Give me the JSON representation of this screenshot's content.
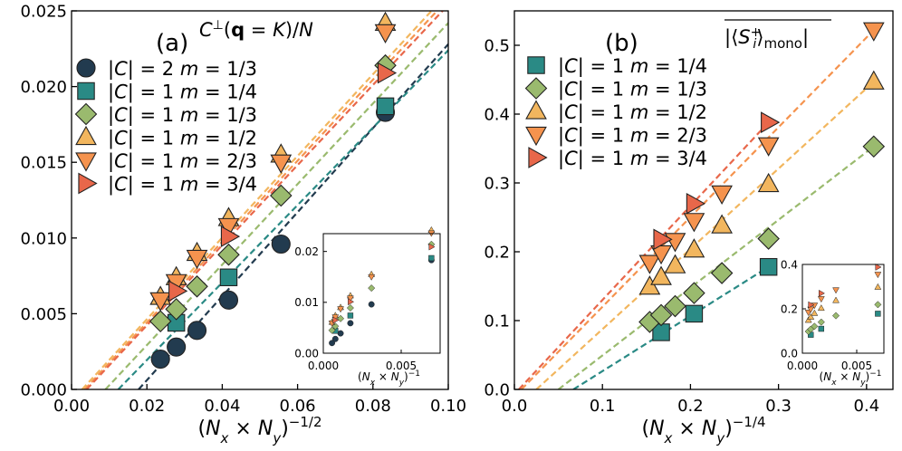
{
  "chart_data": [
    {
      "type": "scatter",
      "panel_label": "(a)",
      "title": "C⊥(q = K)/N",
      "xlabel": "(Nx × Ny)^(−1/2)",
      "xlim": [
        0.0,
        0.1
      ],
      "ylim": [
        0.0,
        0.025
      ],
      "xticks": [
        "0.00",
        "0.02",
        "0.04",
        "0.06",
        "0.08",
        "0.10"
      ],
      "yticks": [
        "0.000",
        "0.005",
        "0.010",
        "0.015",
        "0.020",
        "0.025"
      ],
      "legend_position": "upper-left",
      "fit_lines": "dashed",
      "series": [
        {
          "name": "|C| = 2 m = 1/3",
          "marker": "circle",
          "color": "#223b4f",
          "x": [
            0.0236,
            0.0278,
            0.0333,
            0.0417,
            0.0556,
            0.0833
          ],
          "y": [
            0.002,
            0.0028,
            0.0039,
            0.0059,
            0.0096,
            0.0183
          ],
          "fit": [
            [
              0.0178,
              0.0
            ],
            [
              0.1,
              0.0228
            ]
          ]
        },
        {
          "name": "|C| = 1 m = 1/4",
          "marker": "square",
          "color": "#2a8a85",
          "x": [
            0.0278,
            0.0417,
            0.0833
          ],
          "y": [
            0.0044,
            0.0074,
            0.0187
          ],
          "fit": [
            [
              0.0124,
              0.0
            ],
            [
              0.1,
              0.0224
            ]
          ]
        },
        {
          "name": "|C| = 1 m = 1/3",
          "marker": "diamond",
          "color": "#9aba6e",
          "x": [
            0.0236,
            0.0278,
            0.0333,
            0.0417,
            0.0556,
            0.0833
          ],
          "y": [
            0.0045,
            0.0053,
            0.0068,
            0.0089,
            0.0128,
            0.0214
          ],
          "fit": [
            [
              0.009,
              0.0
            ],
            [
              0.1,
              0.0242
            ]
          ]
        },
        {
          "name": "|C| = 1 m = 1/2",
          "marker": "triangle-up",
          "color": "#f2b65e",
          "x": [
            0.0236,
            0.0278,
            0.0333,
            0.0417,
            0.0556,
            0.0833
          ],
          "y": [
            0.0061,
            0.0074,
            0.009,
            0.0113,
            0.0155,
            0.0242
          ],
          "fit": [
            [
              0.0028,
              0.0
            ],
            [
              0.1,
              0.0262
            ]
          ]
        },
        {
          "name": "|C| = 1 m = 2/3",
          "marker": "triangle-down",
          "color": "#f5934e",
          "x": [
            0.0236,
            0.0278,
            0.0333,
            0.0417,
            0.0556,
            0.0833
          ],
          "y": [
            0.0059,
            0.0071,
            0.0087,
            0.0108,
            0.015,
            0.0236
          ],
          "fit": [
            [
              0.0035,
              0.0
            ],
            [
              0.1,
              0.0258
            ]
          ]
        },
        {
          "name": "|C| = 1 m = 3/4",
          "marker": "triangle-right",
          "color": "#e8674a",
          "x": [
            0.0278,
            0.0417,
            0.0833
          ],
          "y": [
            0.0065,
            0.0101,
            0.0209
          ],
          "fit": [
            [
              0.004,
              0.0
            ],
            [
              0.1,
              0.0254
            ]
          ]
        }
      ],
      "inset": {
        "xlabel": "(Nx × Ny)^(−1)",
        "xlim": [
          0.0,
          0.0075
        ],
        "ylim": [
          0.0,
          0.0235
        ],
        "xticks": [
          "0.000",
          "0.005"
        ],
        "yticks": [
          "0.00",
          "0.01",
          "0.02"
        ]
      }
    },
    {
      "type": "scatter",
      "panel_label": "(b)",
      "title": "|⟨S_i^+⟩_mono| (overlined)",
      "xlabel": "(Nx × Ny)^(−1/4)",
      "xlim": [
        0.0,
        0.43
      ],
      "ylim": [
        0.0,
        0.55
      ],
      "xticks": [
        "0.0",
        "0.1",
        "0.2",
        "0.3",
        "0.4"
      ],
      "yticks": [
        "0.0",
        "0.1",
        "0.2",
        "0.3",
        "0.4",
        "0.5"
      ],
      "legend_position": "upper-left",
      "fit_lines": "dashed",
      "series": [
        {
          "name": "|C| = 1 m = 1/4",
          "marker": "square",
          "color": "#2a8a85",
          "x": [
            0.1667,
            0.2041,
            0.2887
          ],
          "y": [
            0.083,
            0.11,
            0.178
          ],
          "fit": [
            [
              0.067,
              0.0
            ],
            [
              0.2887,
              0.178
            ]
          ]
        },
        {
          "name": "|C| = 1 m = 1/3",
          "marker": "diamond",
          "color": "#9aba6e",
          "x": [
            0.1537,
            0.1667,
            0.1826,
            0.2041,
            0.2357,
            0.2887,
            0.4082
          ],
          "y": [
            0.098,
            0.108,
            0.121,
            0.14,
            0.169,
            0.219,
            0.353
          ],
          "fit": [
            [
              0.05,
              0.0
            ],
            [
              0.4082,
              0.353
            ]
          ]
        },
        {
          "name": "|C| = 1 m = 1/2",
          "marker": "triangle-up",
          "color": "#f2b65e",
          "x": [
            0.1537,
            0.1667,
            0.1826,
            0.2041,
            0.2357,
            0.2887,
            0.4082
          ],
          "y": [
            0.149,
            0.163,
            0.18,
            0.203,
            0.238,
            0.298,
            0.447
          ],
          "fit": [
            [
              0.025,
              0.0
            ],
            [
              0.4082,
              0.447
            ]
          ]
        },
        {
          "name": "|C| = 1 m = 2/3",
          "marker": "triangle-down",
          "color": "#f5934e",
          "x": [
            0.1537,
            0.1667,
            0.1826,
            0.2041,
            0.2357,
            0.2887,
            0.4082
          ],
          "y": [
            0.184,
            0.198,
            0.216,
            0.245,
            0.285,
            0.355,
            0.522
          ],
          "fit": [
            [
              0.008,
              0.0
            ],
            [
              0.4082,
              0.522
            ]
          ]
        },
        {
          "name": "|C| = 1 m = 3/4",
          "marker": "triangle-right",
          "color": "#e8674a",
          "x": [
            0.1667,
            0.2041,
            0.2887
          ],
          "y": [
            0.218,
            0.27,
            0.388
          ],
          "fit": [
            [
              0.005,
              0.0
            ],
            [
              0.2887,
              0.388
            ]
          ]
        }
      ],
      "inset": {
        "xlabel": "(Nx × Ny)^(−1)",
        "xlim": [
          0.0,
          0.0075
        ],
        "ylim": [
          0.0,
          0.4
        ],
        "xticks": [
          "0.000",
          "0.005"
        ],
        "yticks": [
          "0.0",
          "0.2",
          "0.4"
        ]
      }
    }
  ]
}
